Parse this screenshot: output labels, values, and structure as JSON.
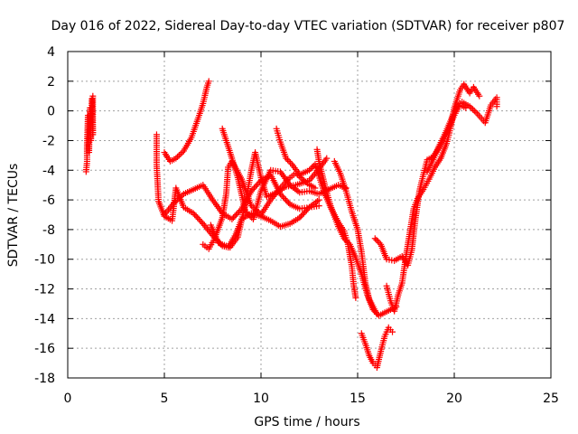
{
  "chart_data": {
    "type": "scatter",
    "title": "Day 016 of 2022, Sidereal Day-to-day VTEC variation (SDTVAR) for receiver p807",
    "xlabel": "GPS time / hours",
    "ylabel": "SDTVAR / TECUs",
    "xlim": [
      0,
      25
    ],
    "ylim": [
      -18,
      4
    ],
    "xticks": [
      "0",
      "5",
      "10",
      "15",
      "20",
      "25"
    ],
    "yticks": [
      "4",
      "2",
      "0",
      "-2",
      "-4",
      "-6",
      "-8",
      "-10",
      "-12",
      "-14",
      "-16",
      "-18"
    ],
    "grid": true,
    "marker": "plus",
    "color": "#ff0000",
    "series": [
      {
        "values": [
          [
            0.95,
            -4.1
          ],
          [
            1.0,
            -3.4
          ],
          [
            1.0,
            -2.3
          ],
          [
            1.05,
            -0.3
          ],
          [
            1.1,
            -2.8
          ],
          [
            1.15,
            0.2
          ],
          [
            1.2,
            -2.0
          ],
          [
            1.25,
            0.8
          ],
          [
            1.3,
            -1.6
          ],
          [
            1.3,
            1.0
          ]
        ]
      },
      {
        "values": [
          [
            4.6,
            -1.6
          ],
          [
            4.6,
            -3.6
          ],
          [
            4.7,
            -6.1
          ],
          [
            5.0,
            -7.1
          ],
          [
            5.4,
            -7.4
          ],
          [
            5.6,
            -5.2
          ],
          [
            6.0,
            -6.5
          ],
          [
            6.5,
            -6.9
          ],
          [
            7.0,
            -7.6
          ],
          [
            7.5,
            -8.4
          ],
          [
            8.0,
            -9.1
          ],
          [
            8.3,
            -9.2
          ],
          [
            8.7,
            -8.3
          ],
          [
            9.0,
            -7.3
          ],
          [
            9.5,
            -6.9
          ],
          [
            10.0,
            -7.1
          ],
          [
            10.5,
            -7.4
          ],
          [
            11.0,
            -7.8
          ],
          [
            11.5,
            -7.6
          ],
          [
            12.0,
            -7.2
          ],
          [
            12.5,
            -6.5
          ],
          [
            13.0,
            -6.0
          ]
        ]
      },
      {
        "values": [
          [
            5.0,
            -2.8
          ],
          [
            5.3,
            -3.4
          ],
          [
            5.6,
            -3.2
          ],
          [
            6.0,
            -2.7
          ],
          [
            6.4,
            -1.8
          ],
          [
            6.8,
            -0.3
          ],
          [
            7.0,
            0.5
          ],
          [
            7.2,
            1.6
          ],
          [
            7.3,
            2.0
          ]
        ]
      },
      {
        "values": [
          [
            5.0,
            -7.0
          ],
          [
            5.5,
            -6.2
          ],
          [
            6.0,
            -5.6
          ],
          [
            6.5,
            -5.3
          ],
          [
            7.0,
            -5.0
          ],
          [
            7.5,
            -6.0
          ],
          [
            8.0,
            -6.9
          ],
          [
            8.5,
            -7.3
          ],
          [
            9.0,
            -6.6
          ],
          [
            9.5,
            -5.4
          ],
          [
            10.0,
            -4.7
          ],
          [
            10.5,
            -4.3
          ],
          [
            11.0,
            -5.6
          ],
          [
            11.5,
            -6.3
          ],
          [
            12.0,
            -6.6
          ],
          [
            12.5,
            -6.5
          ],
          [
            13.0,
            -6.4
          ]
        ]
      },
      {
        "values": [
          [
            7.0,
            -9.0
          ],
          [
            7.3,
            -9.3
          ],
          [
            7.6,
            -8.6
          ],
          [
            8.0,
            -7.2
          ],
          [
            8.2,
            -5.6
          ],
          [
            8.3,
            -3.8
          ],
          [
            8.5,
            -3.4
          ],
          [
            9.0,
            -4.6
          ],
          [
            9.5,
            -6.4
          ],
          [
            10.0,
            -7.0
          ],
          [
            10.5,
            -6.0
          ],
          [
            11.0,
            -5.2
          ],
          [
            11.4,
            -4.6
          ],
          [
            11.8,
            -4.2
          ],
          [
            12.4,
            -4.9
          ],
          [
            12.8,
            -5.2
          ]
        ]
      },
      {
        "values": [
          [
            8.0,
            -1.2
          ],
          [
            8.4,
            -2.8
          ],
          [
            8.8,
            -4.5
          ],
          [
            9.2,
            -6.8
          ],
          [
            9.6,
            -7.3
          ],
          [
            10.0,
            -5.4
          ],
          [
            10.5,
            -4.0
          ],
          [
            11.0,
            -4.1
          ],
          [
            11.5,
            -5.0
          ],
          [
            12.0,
            -5.5
          ],
          [
            12.5,
            -5.4
          ],
          [
            13.0,
            -5.6
          ],
          [
            13.5,
            -5.3
          ],
          [
            14.0,
            -5.0
          ],
          [
            14.4,
            -5.2
          ]
        ]
      },
      {
        "values": [
          [
            7.4,
            -7.7
          ],
          [
            7.8,
            -8.9
          ],
          [
            8.4,
            -9.2
          ],
          [
            8.8,
            -8.5
          ],
          [
            9.2,
            -6.2
          ],
          [
            9.5,
            -4.0
          ],
          [
            9.7,
            -2.8
          ],
          [
            10.0,
            -4.5
          ],
          [
            10.3,
            -5.8
          ],
          [
            10.8,
            -5.5
          ],
          [
            11.3,
            -5.1
          ],
          [
            11.8,
            -5.0
          ],
          [
            12.5,
            -4.7
          ],
          [
            13.0,
            -3.9
          ],
          [
            13.4,
            -3.2
          ]
        ]
      },
      {
        "values": [
          [
            10.8,
            -1.2
          ],
          [
            11.0,
            -2.1
          ],
          [
            11.3,
            -3.2
          ],
          [
            11.6,
            -3.6
          ],
          [
            12.0,
            -4.3
          ],
          [
            12.5,
            -4.0
          ],
          [
            12.8,
            -3.6
          ],
          [
            13.0,
            -4.4
          ],
          [
            13.3,
            -5.6
          ],
          [
            13.6,
            -6.5
          ],
          [
            14.0,
            -7.5
          ],
          [
            14.3,
            -8.1
          ],
          [
            14.5,
            -9.0
          ],
          [
            14.7,
            -10.5
          ],
          [
            14.8,
            -11.8
          ],
          [
            14.9,
            -12.6
          ]
        ]
      },
      {
        "values": [
          [
            12.9,
            -2.6
          ],
          [
            13.0,
            -3.4
          ],
          [
            13.3,
            -5.0
          ],
          [
            13.6,
            -6.4
          ],
          [
            14.0,
            -7.8
          ],
          [
            14.3,
            -8.6
          ],
          [
            14.6,
            -9.0
          ],
          [
            14.9,
            -9.9
          ],
          [
            15.2,
            -11.0
          ],
          [
            15.5,
            -12.4
          ],
          [
            15.8,
            -13.4
          ],
          [
            16.1,
            -13.8
          ],
          [
            16.4,
            -13.6
          ],
          [
            16.7,
            -13.4
          ],
          [
            17.0,
            -13.2
          ]
        ]
      },
      {
        "values": [
          [
            13.8,
            -3.4
          ],
          [
            14.1,
            -4.2
          ],
          [
            14.4,
            -5.4
          ],
          [
            14.7,
            -6.8
          ],
          [
            15.0,
            -8.0
          ],
          [
            15.2,
            -9.5
          ],
          [
            15.4,
            -11.6
          ],
          [
            15.6,
            -12.7
          ],
          [
            15.8,
            -13.2
          ],
          [
            16.0,
            -13.7
          ]
        ]
      },
      {
        "values": [
          [
            15.2,
            -15.0
          ],
          [
            15.4,
            -15.7
          ],
          [
            15.6,
            -16.5
          ],
          [
            15.8,
            -17.0
          ],
          [
            16.0,
            -17.3
          ],
          [
            16.2,
            -16.2
          ],
          [
            16.4,
            -15.2
          ],
          [
            16.6,
            -14.6
          ],
          [
            16.8,
            -14.9
          ]
        ]
      },
      {
        "values": [
          [
            15.9,
            -8.6
          ],
          [
            16.2,
            -9.0
          ],
          [
            16.5,
            -10.0
          ],
          [
            16.9,
            -10.1
          ],
          [
            17.3,
            -9.8
          ],
          [
            17.6,
            -10.4
          ],
          [
            17.8,
            -9.4
          ],
          [
            18.0,
            -7.2
          ],
          [
            18.2,
            -5.4
          ],
          [
            18.4,
            -4.3
          ],
          [
            18.6,
            -3.3
          ],
          [
            18.9,
            -3.1
          ],
          [
            19.2,
            -2.5
          ],
          [
            19.6,
            -1.5
          ],
          [
            20.0,
            -0.3
          ],
          [
            20.3,
            0.4
          ],
          [
            20.6,
            0.2
          ]
        ]
      },
      {
        "values": [
          [
            16.5,
            -11.8
          ],
          [
            16.7,
            -12.8
          ],
          [
            16.9,
            -13.5
          ],
          [
            17.1,
            -12.4
          ],
          [
            17.3,
            -11.6
          ],
          [
            17.5,
            -9.8
          ],
          [
            17.7,
            -8.2
          ],
          [
            17.9,
            -6.6
          ],
          [
            18.1,
            -5.9
          ],
          [
            18.4,
            -5.3
          ],
          [
            18.7,
            -4.6
          ],
          [
            19.0,
            -3.8
          ],
          [
            19.3,
            -3.2
          ],
          [
            19.6,
            -2.2
          ],
          [
            19.8,
            -1.2
          ],
          [
            20.0,
            0.2
          ],
          [
            20.3,
            1.4
          ],
          [
            20.5,
            1.8
          ],
          [
            20.8,
            1.2
          ],
          [
            21.0,
            1.6
          ],
          [
            21.3,
            1.0
          ]
        ]
      },
      {
        "values": [
          [
            18.6,
            -4.1
          ],
          [
            18.9,
            -3.3
          ],
          [
            19.2,
            -2.4
          ],
          [
            19.5,
            -1.6
          ],
          [
            19.8,
            -0.7
          ],
          [
            20.1,
            0.3
          ],
          [
            20.4,
            0.6
          ],
          [
            20.8,
            0.3
          ],
          [
            21.2,
            -0.2
          ],
          [
            21.6,
            -0.8
          ],
          [
            21.9,
            0.4
          ],
          [
            22.2,
            0.9
          ],
          [
            22.2,
            0.3
          ]
        ]
      }
    ]
  }
}
